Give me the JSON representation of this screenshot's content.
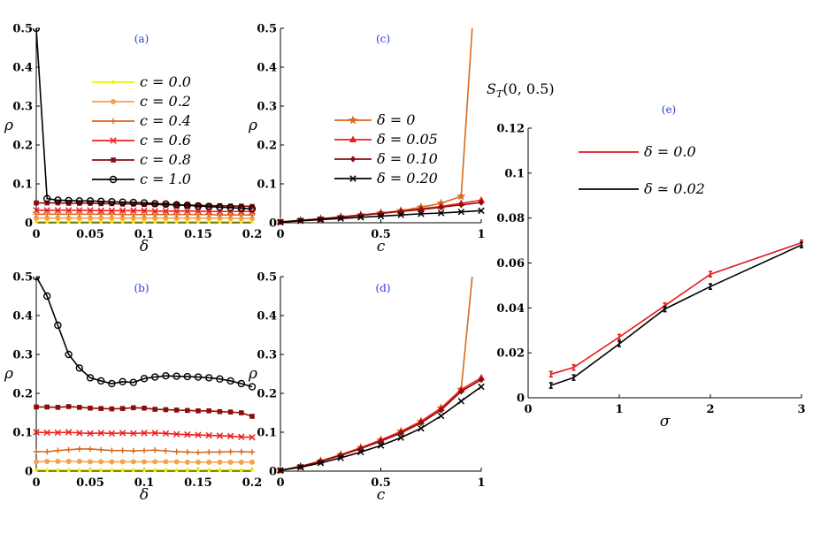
{
  "chart_data": [
    {
      "id": "a",
      "type": "line",
      "panel_label": "(a)",
      "xlabel": "δ",
      "ylabel": "ρ",
      "xlim": [
        0,
        0.2
      ],
      "ylim": [
        0,
        0.5
      ],
      "xticks": [
        "0",
        "0.05",
        "0.1",
        "0.15",
        "0.2"
      ],
      "yticks": [
        "0",
        "0.1",
        "0.2",
        "0.3",
        "0.4",
        "0.5"
      ],
      "xtick_values": [
        0,
        0.05,
        0.1,
        0.15,
        0.2
      ],
      "ytick_values": [
        0,
        0.1,
        0.2,
        0.3,
        0.4,
        0.5
      ],
      "legend_position": "upper-center",
      "x": [
        0,
        0.01,
        0.02,
        0.03,
        0.04,
        0.05,
        0.06,
        0.07,
        0.08,
        0.09,
        0.1,
        0.11,
        0.12,
        0.13,
        0.14,
        0.15,
        0.16,
        0.17,
        0.18,
        0.19,
        0.2
      ],
      "series": [
        {
          "name": "c = 0.0",
          "color": "#f0f000",
          "marker": "dot",
          "values": [
            0.003,
            0.003,
            0.003,
            0.003,
            0.003,
            0.003,
            0.003,
            0.003,
            0.003,
            0.003,
            0.003,
            0.003,
            0.003,
            0.003,
            0.003,
            0.003,
            0.003,
            0.003,
            0.003,
            0.003,
            0.003
          ]
        },
        {
          "name": "c = 0.2",
          "color": "#f7a14a",
          "marker": "circle-filled",
          "values": [
            0.012,
            0.012,
            0.012,
            0.012,
            0.012,
            0.012,
            0.012,
            0.012,
            0.012,
            0.012,
            0.012,
            0.012,
            0.012,
            0.012,
            0.012,
            0.012,
            0.012,
            0.012,
            0.012,
            0.011,
            0.011
          ]
        },
        {
          "name": "c = 0.4",
          "color": "#d86a1c",
          "marker": "plus",
          "values": [
            0.022,
            0.022,
            0.022,
            0.022,
            0.022,
            0.022,
            0.022,
            0.022,
            0.021,
            0.021,
            0.021,
            0.021,
            0.021,
            0.021,
            0.021,
            0.021,
            0.021,
            0.02,
            0.02,
            0.02,
            0.02
          ]
        },
        {
          "name": "c = 0.6",
          "color": "#ef1e1e",
          "marker": "x",
          "values": [
            0.032,
            0.032,
            0.032,
            0.032,
            0.032,
            0.032,
            0.031,
            0.031,
            0.031,
            0.031,
            0.031,
            0.03,
            0.03,
            0.03,
            0.03,
            0.03,
            0.029,
            0.029,
            0.029,
            0.029,
            0.029
          ]
        },
        {
          "name": "c = 0.8",
          "color": "#8b0d0d",
          "marker": "square",
          "values": [
            0.051,
            0.051,
            0.051,
            0.05,
            0.05,
            0.05,
            0.049,
            0.049,
            0.048,
            0.048,
            0.047,
            0.047,
            0.046,
            0.046,
            0.045,
            0.045,
            0.044,
            0.044,
            0.043,
            0.043,
            0.042
          ]
        },
        {
          "name": "c = 1.0",
          "color": "#000000",
          "marker": "circle-open",
          "values": [
            0.5,
            0.062,
            0.058,
            0.057,
            0.056,
            0.056,
            0.055,
            0.054,
            0.053,
            0.052,
            0.051,
            0.049,
            0.048,
            0.046,
            0.045,
            0.043,
            0.042,
            0.04,
            0.039,
            0.037,
            0.036
          ]
        }
      ]
    },
    {
      "id": "b",
      "type": "line",
      "panel_label": "(b)",
      "xlabel": "δ",
      "ylabel": "ρ",
      "xlim": [
        0,
        0.2
      ],
      "ylim": [
        0,
        0.5
      ],
      "xticks": [
        "0",
        "0.05",
        "0.1",
        "0.15",
        "0.2"
      ],
      "yticks": [
        "0",
        "0.1",
        "0.2",
        "0.3",
        "0.4",
        "0.5"
      ],
      "xtick_values": [
        0,
        0.05,
        0.1,
        0.15,
        0.2
      ],
      "ytick_values": [
        0,
        0.1,
        0.2,
        0.3,
        0.4,
        0.5
      ],
      "x": [
        0,
        0.01,
        0.02,
        0.03,
        0.04,
        0.05,
        0.06,
        0.07,
        0.08,
        0.09,
        0.1,
        0.11,
        0.12,
        0.13,
        0.14,
        0.15,
        0.16,
        0.17,
        0.18,
        0.19,
        0.2
      ],
      "series": [
        {
          "name": "c = 0.0",
          "color": "#f0f000",
          "marker": "dot",
          "values": [
            0.003,
            0.003,
            0.003,
            0.003,
            0.003,
            0.003,
            0.003,
            0.003,
            0.003,
            0.003,
            0.003,
            0.003,
            0.003,
            0.003,
            0.003,
            0.003,
            0.003,
            0.003,
            0.003,
            0.003,
            0.003
          ]
        },
        {
          "name": "c = 0.2",
          "color": "#f7a14a",
          "marker": "circle-filled",
          "values": [
            0.024,
            0.025,
            0.025,
            0.025,
            0.025,
            0.024,
            0.024,
            0.024,
            0.024,
            0.024,
            0.024,
            0.024,
            0.024,
            0.024,
            0.023,
            0.023,
            0.023,
            0.023,
            0.023,
            0.023,
            0.023
          ]
        },
        {
          "name": "c = 0.4",
          "color": "#d86a1c",
          "marker": "plus",
          "values": [
            0.05,
            0.05,
            0.053,
            0.055,
            0.057,
            0.057,
            0.055,
            0.053,
            0.053,
            0.052,
            0.053,
            0.054,
            0.052,
            0.05,
            0.049,
            0.048,
            0.049,
            0.049,
            0.05,
            0.05,
            0.049
          ]
        },
        {
          "name": "c = 0.6",
          "color": "#ef1e1e",
          "marker": "x",
          "values": [
            0.1,
            0.099,
            0.099,
            0.1,
            0.098,
            0.097,
            0.098,
            0.097,
            0.098,
            0.097,
            0.098,
            0.098,
            0.097,
            0.095,
            0.094,
            0.093,
            0.092,
            0.091,
            0.09,
            0.088,
            0.087
          ]
        },
        {
          "name": "c = 0.8",
          "color": "#8b0d0d",
          "marker": "square",
          "values": [
            0.165,
            0.165,
            0.164,
            0.166,
            0.164,
            0.162,
            0.161,
            0.16,
            0.161,
            0.163,
            0.162,
            0.159,
            0.158,
            0.157,
            0.156,
            0.155,
            0.155,
            0.153,
            0.152,
            0.15,
            0.141
          ]
        },
        {
          "name": "c = 1.0",
          "color": "#000000",
          "marker": "circle-open",
          "values": [
            0.5,
            0.45,
            0.375,
            0.3,
            0.265,
            0.24,
            0.232,
            0.225,
            0.23,
            0.228,
            0.238,
            0.242,
            0.245,
            0.244,
            0.243,
            0.242,
            0.24,
            0.237,
            0.232,
            0.225,
            0.217
          ]
        }
      ]
    },
    {
      "id": "c",
      "type": "line",
      "panel_label": "(c)",
      "xlabel": "c",
      "ylabel": "ρ",
      "xlim": [
        0,
        1
      ],
      "ylim": [
        0,
        0.5
      ],
      "xticks": [
        "0",
        "0.5",
        "1"
      ],
      "yticks": [
        "0",
        "0.1",
        "0.2",
        "0.3",
        "0.4",
        "0.5"
      ],
      "xtick_values": [
        0,
        0.5,
        1
      ],
      "ytick_values": [
        0,
        0.1,
        0.2,
        0.3,
        0.4,
        0.5
      ],
      "legend_position": "center-left",
      "x": [
        0,
        0.1,
        0.2,
        0.3,
        0.4,
        0.5,
        0.6,
        0.7,
        0.8,
        0.9,
        1.0
      ],
      "series": [
        {
          "name": "δ = 0",
          "color": "#d86a1c",
          "marker": "star",
          "values": [
            0.002,
            0.006,
            0.01,
            0.015,
            0.02,
            0.025,
            0.031,
            0.04,
            0.05,
            0.068,
            null
          ],
          "extra_line": [
            [
              0.9,
              0.068
            ],
            [
              0.955,
              0.5
            ]
          ]
        },
        {
          "name": "δ = 0.05",
          "color": "#ef1e1e",
          "marker": "triangle",
          "values": [
            0.002,
            0.006,
            0.01,
            0.015,
            0.02,
            0.025,
            0.03,
            0.036,
            0.042,
            0.05,
            0.058
          ]
        },
        {
          "name": "δ = 0.10",
          "color": "#8b0d0d",
          "marker": "diamond",
          "values": [
            0.002,
            0.006,
            0.01,
            0.014,
            0.019,
            0.024,
            0.029,
            0.034,
            0.04,
            0.046,
            0.052
          ]
        },
        {
          "name": "δ = 0.20",
          "color": "#000000",
          "marker": "x",
          "values": [
            0.002,
            0.005,
            0.008,
            0.011,
            0.014,
            0.017,
            0.02,
            0.023,
            0.025,
            0.028,
            0.031
          ]
        }
      ]
    },
    {
      "id": "d",
      "type": "line",
      "panel_label": "(d)",
      "xlabel": "c",
      "ylabel": "ρ",
      "xlim": [
        0,
        1
      ],
      "ylim": [
        0,
        0.5
      ],
      "xticks": [
        "0",
        "0.5",
        "1"
      ],
      "yticks": [
        "0",
        "0.1",
        "0.2",
        "0.3",
        "0.4",
        "0.5"
      ],
      "xtick_values": [
        0,
        0.5,
        1
      ],
      "ytick_values": [
        0,
        0.1,
        0.2,
        0.3,
        0.4,
        0.5
      ],
      "x": [
        0,
        0.1,
        0.2,
        0.3,
        0.4,
        0.5,
        0.6,
        0.7,
        0.8,
        0.9,
        1.0
      ],
      "series": [
        {
          "name": "δ = 0",
          "color": "#d86a1c",
          "marker": "star",
          "values": [
            0.002,
            0.012,
            0.026,
            0.042,
            0.06,
            0.08,
            0.102,
            0.128,
            0.162,
            0.21,
            null
          ],
          "extra_line": [
            [
              0.9,
              0.21
            ],
            [
              0.955,
              0.5
            ]
          ]
        },
        {
          "name": "δ = 0.05",
          "color": "#ef1e1e",
          "marker": "triangle",
          "values": [
            0.002,
            0.012,
            0.026,
            0.042,
            0.06,
            0.08,
            0.102,
            0.128,
            0.162,
            0.21,
            0.24
          ]
        },
        {
          "name": "δ = 0.10",
          "color": "#8b0d0d",
          "marker": "diamond",
          "values": [
            0.002,
            0.012,
            0.025,
            0.04,
            0.058,
            0.077,
            0.098,
            0.124,
            0.157,
            0.205,
            0.235
          ]
        },
        {
          "name": "δ = 0.20",
          "color": "#000000",
          "marker": "x",
          "values": [
            0.002,
            0.01,
            0.021,
            0.034,
            0.049,
            0.066,
            0.086,
            0.11,
            0.142,
            0.18,
            0.217
          ]
        }
      ]
    },
    {
      "id": "e",
      "type": "line",
      "panel_label": "(e)",
      "title": "S_T(0, 0.5)",
      "xlabel": "σ",
      "ylabel": "",
      "xlim": [
        0,
        3
      ],
      "ylim": [
        0,
        0.12
      ],
      "xticks": [
        "0",
        "1",
        "2",
        "3"
      ],
      "yticks": [
        "0",
        "0.02",
        "0.04",
        "0.06",
        "0.08",
        "0.1",
        "0.12"
      ],
      "xtick_values": [
        0,
        1,
        2,
        3
      ],
      "ytick_values": [
        0,
        0.02,
        0.04,
        0.06,
        0.08,
        0.1,
        0.12
      ],
      "legend_position": "upper-center",
      "x": [
        0.25,
        0.5,
        1,
        1.5,
        2,
        3
      ],
      "series": [
        {
          "name": "δ = 0.0",
          "color": "#e31a1c",
          "marker": "bar",
          "values": [
            0.0105,
            0.0135,
            0.027,
            0.041,
            0.055,
            0.069
          ]
        },
        {
          "name": "δ ≃ 0.02",
          "color": "#000000",
          "marker": "bar",
          "values": [
            0.0055,
            0.009,
            0.024,
            0.0395,
            0.0495,
            0.068
          ]
        }
      ]
    }
  ]
}
